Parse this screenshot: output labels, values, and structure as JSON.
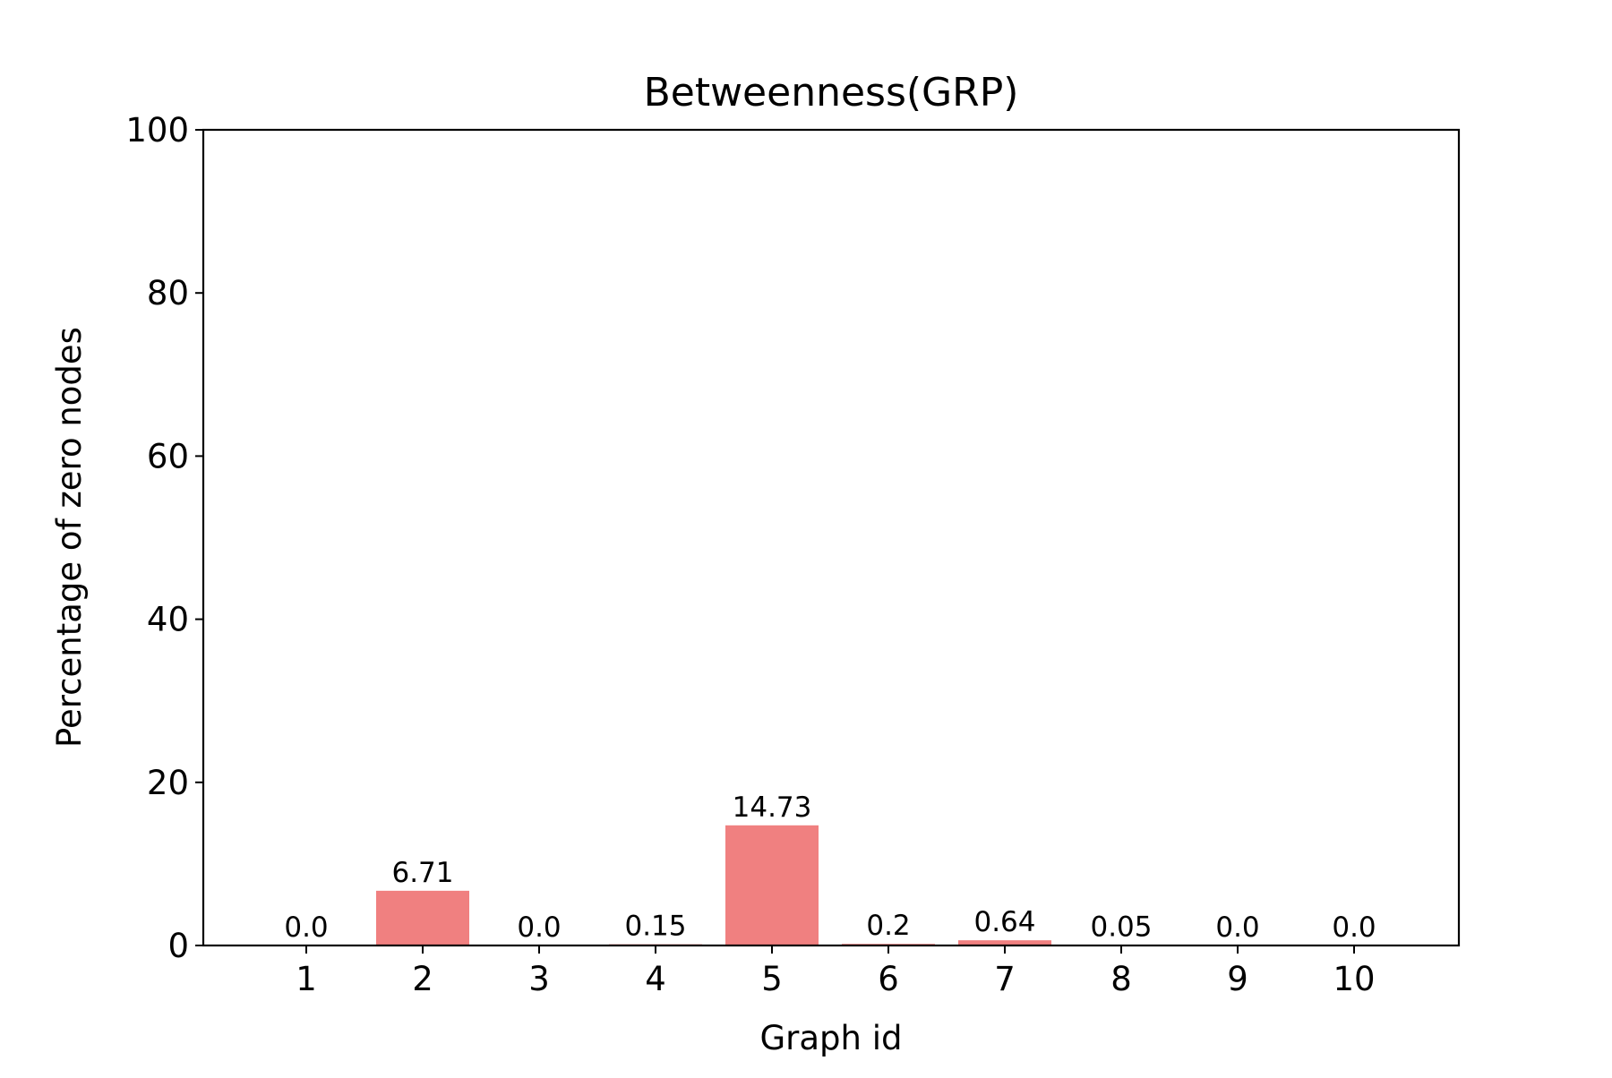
{
  "chart_data": {
    "type": "bar",
    "title": "Betweenness(GRP)",
    "xlabel": "Graph id",
    "ylabel": "Percentage of zero nodes",
    "categories": [
      "1",
      "2",
      "3",
      "4",
      "5",
      "6",
      "7",
      "8",
      "9",
      "10"
    ],
    "values": [
      0.0,
      6.71,
      0.0,
      0.15,
      14.73,
      0.2,
      0.64,
      0.05,
      0.0,
      0.0
    ],
    "value_labels": [
      "0.0",
      "6.71",
      "0.0",
      "0.15",
      "14.73",
      "0.2",
      "0.64",
      "0.05",
      "0.0",
      "0.0"
    ],
    "ylim": [
      0,
      100
    ],
    "yticks": [
      0,
      20,
      40,
      60,
      80,
      100
    ],
    "ytick_labels": [
      "0",
      "20",
      "40",
      "60",
      "80",
      "100"
    ],
    "bar_color": "#f08080",
    "grid": false,
    "legend": "none"
  }
}
